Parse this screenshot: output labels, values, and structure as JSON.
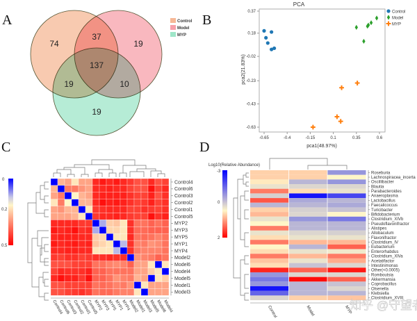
{
  "panels": {
    "a": "A",
    "b": "B",
    "c": "C",
    "d": "D"
  },
  "watermark": "知乎 @守望者",
  "chart_data": [
    {
      "type": "venn",
      "sets": [
        {
          "name": "Control",
          "color": "#f6b896"
        },
        {
          "name": "Model",
          "color": "#f7a0aa"
        },
        {
          "name": "MYP",
          "color": "#9ee6c8"
        }
      ],
      "regions": {
        "Control_only": 74,
        "Model_only": 19,
        "MYP_only": 19,
        "Control_Model": 37,
        "Control_MYP": 19,
        "Model_MYP": 10,
        "all": 137
      }
    },
    {
      "type": "scatter",
      "title": "PCA",
      "xlabel": "pca1(48.97%)",
      "ylabel": "pca2(21.83%)",
      "xticks": [
        "-0.65",
        "-0.4",
        "-0.15",
        "0.1",
        "0.35",
        "0.6"
      ],
      "yticks": [
        "0.37",
        "0.18",
        "-0.02",
        "-0.23",
        "-0.43",
        "-0.63"
      ],
      "xlim": [
        -0.65,
        0.6
      ],
      "ylim": [
        -0.63,
        0.37
      ],
      "legend_position": "top-right",
      "series": [
        {
          "name": "Control",
          "color": "#1f77b4",
          "marker": "circle",
          "points": [
            [
              -0.65,
              0.2
            ],
            [
              -0.57,
              0.19
            ],
            [
              -0.63,
              0.14
            ],
            [
              -0.61,
              0.095
            ],
            [
              -0.57,
              0.04
            ],
            [
              -0.54,
              0.05
            ]
          ]
        },
        {
          "name": "Model",
          "color": "#2ca02c",
          "marker": "diamond",
          "points": [
            [
              0.35,
              0.23
            ],
            [
              0.43,
              0.11
            ],
            [
              0.47,
              0.24
            ],
            [
              0.48,
              0.25
            ],
            [
              0.51,
              0.27
            ],
            [
              0.57,
              0.31
            ]
          ]
        },
        {
          "name": "MYP",
          "color": "#ff7f0e",
          "marker": "plus",
          "points": [
            [
              0.19,
              -0.29
            ],
            [
              0.36,
              -0.25
            ],
            [
              0.14,
              -0.54
            ],
            [
              0.18,
              -0.58
            ],
            [
              -0.12,
              -0.63
            ]
          ]
        }
      ]
    },
    {
      "type": "heatmap",
      "colorbar_ticks": [
        "0",
        "0.2",
        "0.5"
      ],
      "range": [
        0,
        0.5
      ],
      "rows": [
        "Control4",
        "Control6",
        "Control3",
        "Control2",
        "Control1",
        "Control5",
        "MYP2",
        "MYP3",
        "MYP5",
        "MYP1",
        "MYP4",
        "Model2",
        "Model6",
        "Model4",
        "Model5",
        "Model1",
        "Model3"
      ],
      "columns": [
        "Control4",
        "Control6",
        "Control3",
        "Control2",
        "Control1",
        "Control5",
        "MYP2",
        "MYP3",
        "MYP5",
        "MYP1",
        "MYP4",
        "Model2",
        "Model1",
        "Model3",
        "Model5",
        "Model6",
        "Model4"
      ],
      "values": [
        [
          0,
          0.28,
          0.3,
          0.22,
          0.3,
          0.3,
          0.45,
          0.47,
          0.45,
          0.47,
          0.45,
          0.43,
          0.4,
          0.4,
          0.45,
          0.4,
          0.42
        ],
        [
          0.28,
          0,
          0.35,
          0.35,
          0.32,
          0.3,
          0.45,
          0.45,
          0.46,
          0.45,
          0.45,
          0.42,
          0.4,
          0.4,
          0.48,
          0.42,
          0.45
        ],
        [
          0.3,
          0.35,
          0,
          0.2,
          0.28,
          0.3,
          0.45,
          0.46,
          0.46,
          0.46,
          0.46,
          0.44,
          0.42,
          0.42,
          0.46,
          0.4,
          0.44
        ],
        [
          0.22,
          0.35,
          0.2,
          0,
          0.28,
          0.28,
          0.45,
          0.48,
          0.46,
          0.47,
          0.46,
          0.44,
          0.42,
          0.43,
          0.46,
          0.42,
          0.44
        ],
        [
          0.3,
          0.32,
          0.28,
          0.28,
          0,
          0.22,
          0.43,
          0.44,
          0.45,
          0.45,
          0.45,
          0.42,
          0.42,
          0.44,
          0.43,
          0.42,
          0.44
        ],
        [
          0.3,
          0.3,
          0.3,
          0.28,
          0.22,
          0,
          0.43,
          0.45,
          0.45,
          0.46,
          0.45,
          0.43,
          0.42,
          0.42,
          0.48,
          0.44,
          0.46
        ],
        [
          0.45,
          0.45,
          0.45,
          0.45,
          0.43,
          0.43,
          0,
          0.12,
          0.25,
          0.26,
          0.22,
          0.44,
          0.36,
          0.36,
          0.38,
          0.36,
          0.38
        ],
        [
          0.47,
          0.45,
          0.46,
          0.48,
          0.44,
          0.45,
          0.12,
          0,
          0.24,
          0.24,
          0.22,
          0.44,
          0.37,
          0.37,
          0.38,
          0.38,
          0.38
        ],
        [
          0.45,
          0.46,
          0.46,
          0.46,
          0.45,
          0.45,
          0.25,
          0.24,
          0,
          0.22,
          0.22,
          0.45,
          0.36,
          0.37,
          0.36,
          0.34,
          0.36
        ],
        [
          0.47,
          0.45,
          0.46,
          0.47,
          0.45,
          0.46,
          0.26,
          0.24,
          0.22,
          0,
          0.13,
          0.44,
          0.34,
          0.35,
          0.32,
          0.33,
          0.36
        ],
        [
          0.45,
          0.45,
          0.46,
          0.46,
          0.45,
          0.45,
          0.22,
          0.22,
          0.22,
          0.13,
          0,
          0.44,
          0.35,
          0.34,
          0.34,
          0.34,
          0.36
        ],
        [
          0.43,
          0.42,
          0.44,
          0.44,
          0.42,
          0.43,
          0.44,
          0.44,
          0.45,
          0.44,
          0.44,
          0,
          0.32,
          0.34,
          0.35,
          0.38,
          0.36
        ],
        [
          0.4,
          0.4,
          0.4,
          0.42,
          0.42,
          0.42,
          0.36,
          0.36,
          0.34,
          0.33,
          0.34,
          0.38,
          0.3,
          0.3,
          0.22,
          0,
          0.22
        ],
        [
          0.42,
          0.45,
          0.44,
          0.44,
          0.44,
          0.46,
          0.38,
          0.38,
          0.36,
          0.36,
          0.36,
          0.36,
          0.3,
          0.3,
          0.25,
          0.22,
          0
        ],
        [
          0.45,
          0.48,
          0.46,
          0.46,
          0.43,
          0.48,
          0.38,
          0.38,
          0.36,
          0.32,
          0.34,
          0.35,
          0.28,
          0.3,
          0,
          0.22,
          0.25
        ],
        [
          0.4,
          0.4,
          0.42,
          0.42,
          0.42,
          0.42,
          0.36,
          0.37,
          0.36,
          0.34,
          0.35,
          0.32,
          0,
          0.22,
          0.3,
          0.3,
          0.3
        ],
        [
          0.4,
          0.4,
          0.42,
          0.43,
          0.44,
          0.42,
          0.36,
          0.37,
          0.37,
          0.35,
          0.34,
          0.34,
          0.22,
          0,
          0.3,
          0.3,
          0.3
        ]
      ]
    },
    {
      "type": "heatmap",
      "colorbar_title": "Log10(Relative Abundance)",
      "colorbar_ticks": [
        "-3",
        "0",
        "2"
      ],
      "range": [
        -3,
        2
      ],
      "columns": [
        "Control",
        "Model",
        "MYP"
      ],
      "rows": [
        "Roseburia",
        "Lachnospiracea_incerta",
        "Oscillibacter",
        "Blautia",
        "Parabacteroides",
        "Anaeroplasma",
        "Lactobacillus",
        "Faecalicoccus",
        "Turicibacter",
        "Bifidobacterium",
        "Clostridium_XIVb",
        "Pseudoflavonifractor",
        "Alistipes",
        "Allobaculum",
        "Flavonifractor",
        "Clostridium_IV",
        "Eubacterium",
        "Enterorhabdus",
        "Clostridium_XlVa",
        "Acetatifactor",
        "Intestinimonas",
        "Other(<0.0005)",
        "Romboutsia",
        "Akkermansia",
        "Coprobacillus",
        "Olsenella",
        "Klebsiella",
        "Clostridium_XVIII"
      ],
      "values": [
        [
          0.3,
          0.3,
          -1.5
        ],
        [
          0.3,
          0.3,
          0
        ],
        [
          0.1,
          -1,
          -1.5
        ],
        [
          -0.3,
          -0.5,
          -0.5
        ],
        [
          1,
          0.2,
          -0.3
        ],
        [
          -0.6,
          -2.8,
          -2.3
        ],
        [
          1.3,
          -1.2,
          -1
        ],
        [
          -1,
          -1,
          -1.2
        ],
        [
          0.3,
          -0.6,
          -0.8
        ],
        [
          0.5,
          -0.5,
          0
        ],
        [
          -0.3,
          -1.5,
          -1.8
        ],
        [
          0,
          -1,
          -1
        ],
        [
          1,
          -1,
          -1
        ],
        [
          -0.3,
          -0.5,
          -0.6
        ],
        [
          0.2,
          -0.3,
          -0.3
        ],
        [
          1,
          0.5,
          0.5
        ],
        [
          0,
          -1,
          1.2
        ],
        [
          0.2,
          -0.3,
          -0.2
        ],
        [
          1,
          0.5,
          1
        ],
        [
          0.4,
          -0.3,
          0.6
        ],
        [
          0.2,
          -0.8,
          -0.5
        ],
        [
          1.7,
          1.2,
          1.8
        ],
        [
          -1.5,
          -0.5,
          -0.5
        ],
        [
          -1.8,
          1.9,
          1.2
        ],
        [
          -1.5,
          -1,
          -0.8
        ],
        [
          -2.8,
          -1,
          -0.5
        ],
        [
          -2,
          -1,
          -1
        ],
        [
          -0.5,
          0.3,
          0.4
        ]
      ]
    }
  ]
}
